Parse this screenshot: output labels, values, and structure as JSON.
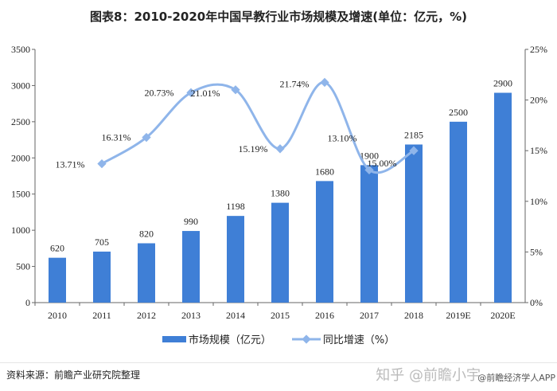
{
  "title": "图表8：2010-2020年中国早教行业市场规模及增速(单位：亿元，%)",
  "chart_data": {
    "type": "bar+line",
    "categories": [
      "2010",
      "2011",
      "2012",
      "2013",
      "2014",
      "2015",
      "2016",
      "2017",
      "2018",
      "2019E",
      "2020E"
    ],
    "series": [
      {
        "name": "市场规模（亿元）",
        "type": "bar",
        "axis": "left",
        "color": "#3f7fd6",
        "values": [
          620,
          705,
          820,
          990,
          1198,
          1380,
          1680,
          1900,
          2185,
          2500,
          2900
        ]
      },
      {
        "name": "同比增速（%）",
        "type": "line",
        "axis": "right",
        "color": "#8fb5ea",
        "values": [
          null,
          13.71,
          16.31,
          20.73,
          21.01,
          15.19,
          21.74,
          13.1,
          15.0,
          null,
          null
        ]
      }
    ],
    "y_left": {
      "range": [
        0,
        3500
      ],
      "ticks": [
        "0",
        "500",
        "1000",
        "1500",
        "2000",
        "2500",
        "3000",
        "3500"
      ]
    },
    "y_right": {
      "range": [
        0,
        25
      ],
      "ticks": [
        "0%",
        "5%",
        "10%",
        "15%",
        "20%",
        "25%"
      ]
    },
    "line_labels": [
      "",
      "13.71%",
      "16.31%",
      "20.73%",
      "21.01%",
      "15.19%",
      "21.74%",
      "13.10%",
      "15.00%",
      "",
      ""
    ],
    "grid": false,
    "legend": "bottom"
  },
  "legend": {
    "bar": "市场规模（亿元）",
    "line": "同比增速（%）"
  },
  "footer": {
    "source": "资料来源：前瞻产业研究院整理",
    "watermark": "知乎 @前瞻小宇",
    "watermark2": "@前瞻经济学人APP"
  }
}
